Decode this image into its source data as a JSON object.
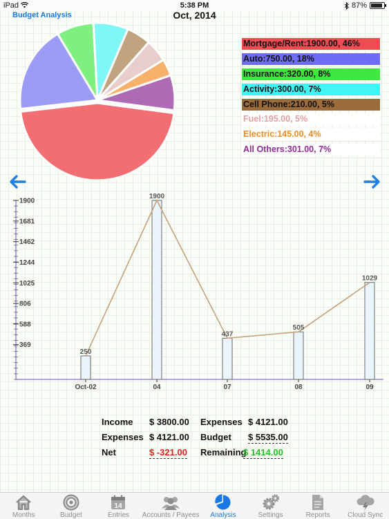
{
  "status_bar": {
    "device": "iPad",
    "time": "5:38 PM",
    "battery": "87%",
    "battery_level": 0.87,
    "icons": [
      "wifi-icon",
      "bluetooth-icon",
      "battery-icon"
    ]
  },
  "header": {
    "section_label": "Budget Analysis",
    "period": "Oct, 2014"
  },
  "pie": {
    "slices": [
      {
        "label": "Mortgage/Rent:1900.00, 46%",
        "value": 1900,
        "color": "#f26e73",
        "text_color": "#111111"
      },
      {
        "label": "Auto:750.00, 18%",
        "value": 750,
        "color": "#9c9cf7",
        "text_color": "#111111"
      },
      {
        "label": "Insurance:320.00, 8%",
        "value": 320,
        "color": "#7ff07f",
        "text_color": "#111111"
      },
      {
        "label": "Activity:300.00, 7%",
        "value": 300,
        "color": "#7ff7f7",
        "text_color": "#111111"
      },
      {
        "label": "Cell Phone:210.00, 5%",
        "value": 210,
        "color": "#c2a37f",
        "text_color": "#111111"
      },
      {
        "label": "Fuel:195.00, 5%",
        "value": 195,
        "color": "#e8cdcd",
        "text_color": "#e0a0a0"
      },
      {
        "label": "Electric:145.00, 4%",
        "value": 145,
        "color": "#f7b16a",
        "text_color": "#f08c24"
      },
      {
        "label": "All Others:301.00, 7%",
        "value": 301,
        "color": "#ad6bb5",
        "text_color": "#8e2a96"
      }
    ],
    "legend_colors": [
      "#ef4b52",
      "#6c6cf4",
      "#3fe83f",
      "#3ff5f5",
      "#9c6b3c",
      "#ffffff",
      "#ffffff",
      "#ffffff"
    ]
  },
  "navigation": {
    "previous_icon": "arrow-left-icon",
    "next_icon": "arrow-right-icon"
  },
  "chart_data": {
    "type": "bar",
    "categories": [
      "Oct-02",
      "04",
      "07",
      "08",
      "09"
    ],
    "values": [
      250,
      1900,
      437,
      505,
      1029
    ],
    "y_ticks": [
      369,
      588,
      806,
      1025,
      1244,
      1462,
      1681,
      1900
    ],
    "ylim": [
      0,
      1900
    ],
    "bar_fill": "#eaf4fd",
    "bar_stroke": "#6a6a6a",
    "line_color": "#c4a07c",
    "axis_color": "#8a6fd1"
  },
  "summary": {
    "income_label": "Income",
    "income_value": "$ 3800.00",
    "expenses_label_left": "Expenses",
    "expenses_value_left": "$ 4121.00",
    "net_label": "Net",
    "net_value": "$ -321.00",
    "expenses_label_right": "Expenses",
    "expenses_value_right": "$ 4121.00",
    "budget_label": "Budget",
    "budget_value": "$ 5535.00",
    "remaining_label": "Remaining",
    "remaining_value": "$ 1414.00",
    "net_color": "#e02020",
    "remaining_color": "#22c022"
  },
  "tabs": [
    {
      "label": "Months",
      "icon": "house-icon",
      "active": false
    },
    {
      "label": "Budget",
      "icon": "target-icon",
      "active": false
    },
    {
      "label": "Entries",
      "icon": "calendar-icon",
      "icon_text": "14",
      "active": false
    },
    {
      "label": "Accounts / Payees",
      "icon": "people-icon",
      "active": false
    },
    {
      "label": "Analysis",
      "icon": "pie-chart-icon",
      "active": true
    },
    {
      "label": "Settings",
      "icon": "gears-icon",
      "active": false
    },
    {
      "label": "Reports",
      "icon": "document-icon",
      "active": false
    },
    {
      "label": "Cloud Sync",
      "icon": "cloud-lightning-icon",
      "active": false
    }
  ]
}
